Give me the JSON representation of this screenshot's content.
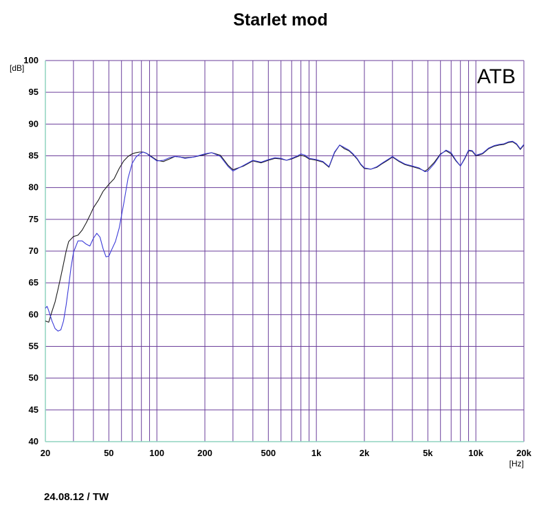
{
  "chart_data": {
    "type": "line",
    "title": "Starlet mod",
    "xlabel": "[Hz]",
    "ylabel": "[dB]",
    "xscale": "log",
    "xlim": [
      20,
      20000
    ],
    "ylim": [
      40,
      100
    ],
    "grid": true,
    "annotation": "ATB",
    "footer": "24.08.12 / TW",
    "x_tick_labels": [
      {
        "value": 20,
        "label": "20"
      },
      {
        "value": 50,
        "label": "50"
      },
      {
        "value": 100,
        "label": "100"
      },
      {
        "value": 200,
        "label": "200"
      },
      {
        "value": 500,
        "label": "500"
      },
      {
        "value": 1000,
        "label": "1k"
      },
      {
        "value": 2000,
        "label": "2k"
      },
      {
        "value": 5000,
        "label": "5k"
      },
      {
        "value": 10000,
        "label": "10k"
      },
      {
        "value": 20000,
        "label": "20k"
      }
    ],
    "x_grid": [
      20,
      30,
      40,
      50,
      60,
      70,
      80,
      90,
      100,
      200,
      300,
      400,
      500,
      600,
      700,
      800,
      900,
      1000,
      2000,
      3000,
      4000,
      5000,
      6000,
      7000,
      8000,
      9000,
      10000,
      20000
    ],
    "y_ticks": [
      40,
      45,
      50,
      55,
      60,
      65,
      70,
      75,
      80,
      85,
      90,
      95,
      100
    ],
    "colors": {
      "grid": "#6a3d9a",
      "axis": "#8fd3bf",
      "series_black": "#1a1a1a",
      "series_blue": "#3a3ad8"
    },
    "series": [
      {
        "color": "#1a1a1a",
        "x": [
          20,
          21,
          22,
          23,
          24,
          25,
          26,
          27,
          28,
          30,
          32,
          34,
          36,
          38,
          40,
          43,
          46,
          50,
          54,
          58,
          62,
          66,
          70,
          74,
          78,
          82,
          86,
          90,
          95,
          100,
          110,
          120,
          130,
          140,
          150,
          170,
          200,
          220,
          250,
          280,
          300,
          350,
          400,
          450,
          500,
          550,
          600,
          650,
          700,
          750,
          800,
          850,
          900,
          950,
          1000,
          1100,
          1200,
          1300,
          1400,
          1500,
          1600,
          1700,
          1800,
          1900,
          2000,
          2200,
          2400,
          2600,
          2800,
          3000,
          3300,
          3600,
          4000,
          4400,
          4800,
          5000,
          5500,
          6000,
          6500,
          7000,
          7500,
          8000,
          8500,
          9000,
          9500,
          10000,
          11000,
          12000,
          13000,
          14000,
          15000,
          16000,
          17000,
          18000,
          19000,
          20000
        ],
        "y": [
          59,
          58.8,
          60.5,
          62,
          64,
          66,
          68,
          70,
          71.5,
          72.3,
          72.5,
          73.3,
          74.4,
          75.6,
          76.8,
          78,
          79.4,
          80.5,
          81.4,
          83,
          84.2,
          84.9,
          85.3,
          85.5,
          85.6,
          85.6,
          85.4,
          85.1,
          84.7,
          84.3,
          84.1,
          84.5,
          84.9,
          84.8,
          84.7,
          84.8,
          85.2,
          85.5,
          85.1,
          83.5,
          82.8,
          83.4,
          84.2,
          83.9,
          84.3,
          84.6,
          84.5,
          84.3,
          84.5,
          84.8,
          85.1,
          84.9,
          84.5,
          84.4,
          84.3,
          84,
          83.2,
          85.5,
          86.7,
          86.1,
          85.8,
          85.2,
          84.5,
          83.6,
          83,
          82.9,
          83.2,
          83.8,
          84.3,
          84.8,
          84.1,
          83.6,
          83.3,
          83,
          82.6,
          82.9,
          84,
          85.3,
          85.8,
          85.3,
          84.2,
          83.4,
          84.5,
          85.8,
          85.7,
          85,
          85.3,
          86.1,
          86.5,
          86.7,
          86.8,
          87.1,
          87.2,
          86.8,
          86,
          86.7
        ]
      },
      {
        "color": "#3a3ad8",
        "x": [
          20,
          20.5,
          21,
          22,
          23,
          24,
          25,
          26,
          27,
          28,
          29,
          30,
          32,
          34,
          36,
          38,
          40,
          42,
          44,
          46,
          48,
          50,
          52,
          55,
          58,
          62,
          66,
          70,
          74,
          78,
          82,
          86,
          90,
          95,
          100,
          110,
          120,
          130,
          140,
          150,
          170,
          200,
          220,
          250,
          280,
          300,
          350,
          400,
          450,
          500,
          550,
          600,
          650,
          700,
          750,
          800,
          850,
          900,
          950,
          1000,
          1100,
          1200,
          1300,
          1400,
          1500,
          1600,
          1700,
          1800,
          1900,
          2000,
          2200,
          2400,
          2600,
          2800,
          3000,
          3300,
          3600,
          4000,
          4400,
          4800,
          5000,
          5500,
          6000,
          6500,
          7000,
          7500,
          8000,
          8500,
          9000,
          9500,
          10000,
          11000,
          12000,
          13000,
          14000,
          15000,
          16000,
          17000,
          18000,
          19000,
          20000
        ],
        "y": [
          61,
          61.3,
          60.6,
          59,
          57.8,
          57.4,
          57.6,
          59,
          61.5,
          64.5,
          67.5,
          69.8,
          71.6,
          71.6,
          71.1,
          70.8,
          72,
          72.8,
          72.2,
          70.4,
          69.1,
          69.2,
          70.2,
          71.5,
          73.6,
          77.5,
          81.5,
          83.8,
          84.8,
          85.3,
          85.6,
          85.4,
          85,
          84.6,
          84.2,
          84.3,
          84.7,
          84.9,
          84.8,
          84.6,
          84.8,
          85.3,
          85.5,
          84.9,
          83.3,
          82.6,
          83.5,
          84.3,
          84,
          84.4,
          84.7,
          84.6,
          84.3,
          84.6,
          84.9,
          85.3,
          85.1,
          84.6,
          84.5,
          84.4,
          84.1,
          83.3,
          85.6,
          86.7,
          86.3,
          85.9,
          85.3,
          84.6,
          83.7,
          83.1,
          82.9,
          83.3,
          83.9,
          84.4,
          84.9,
          84.2,
          83.7,
          83.4,
          83.1,
          82.5,
          82.6,
          83.8,
          85.2,
          85.9,
          85.5,
          84.3,
          83.4,
          84.6,
          85.9,
          85.8,
          85.1,
          85.4,
          86.2,
          86.6,
          86.8,
          86.9,
          87.2,
          87.3,
          86.9,
          86.1,
          86.8
        ]
      }
    ]
  }
}
